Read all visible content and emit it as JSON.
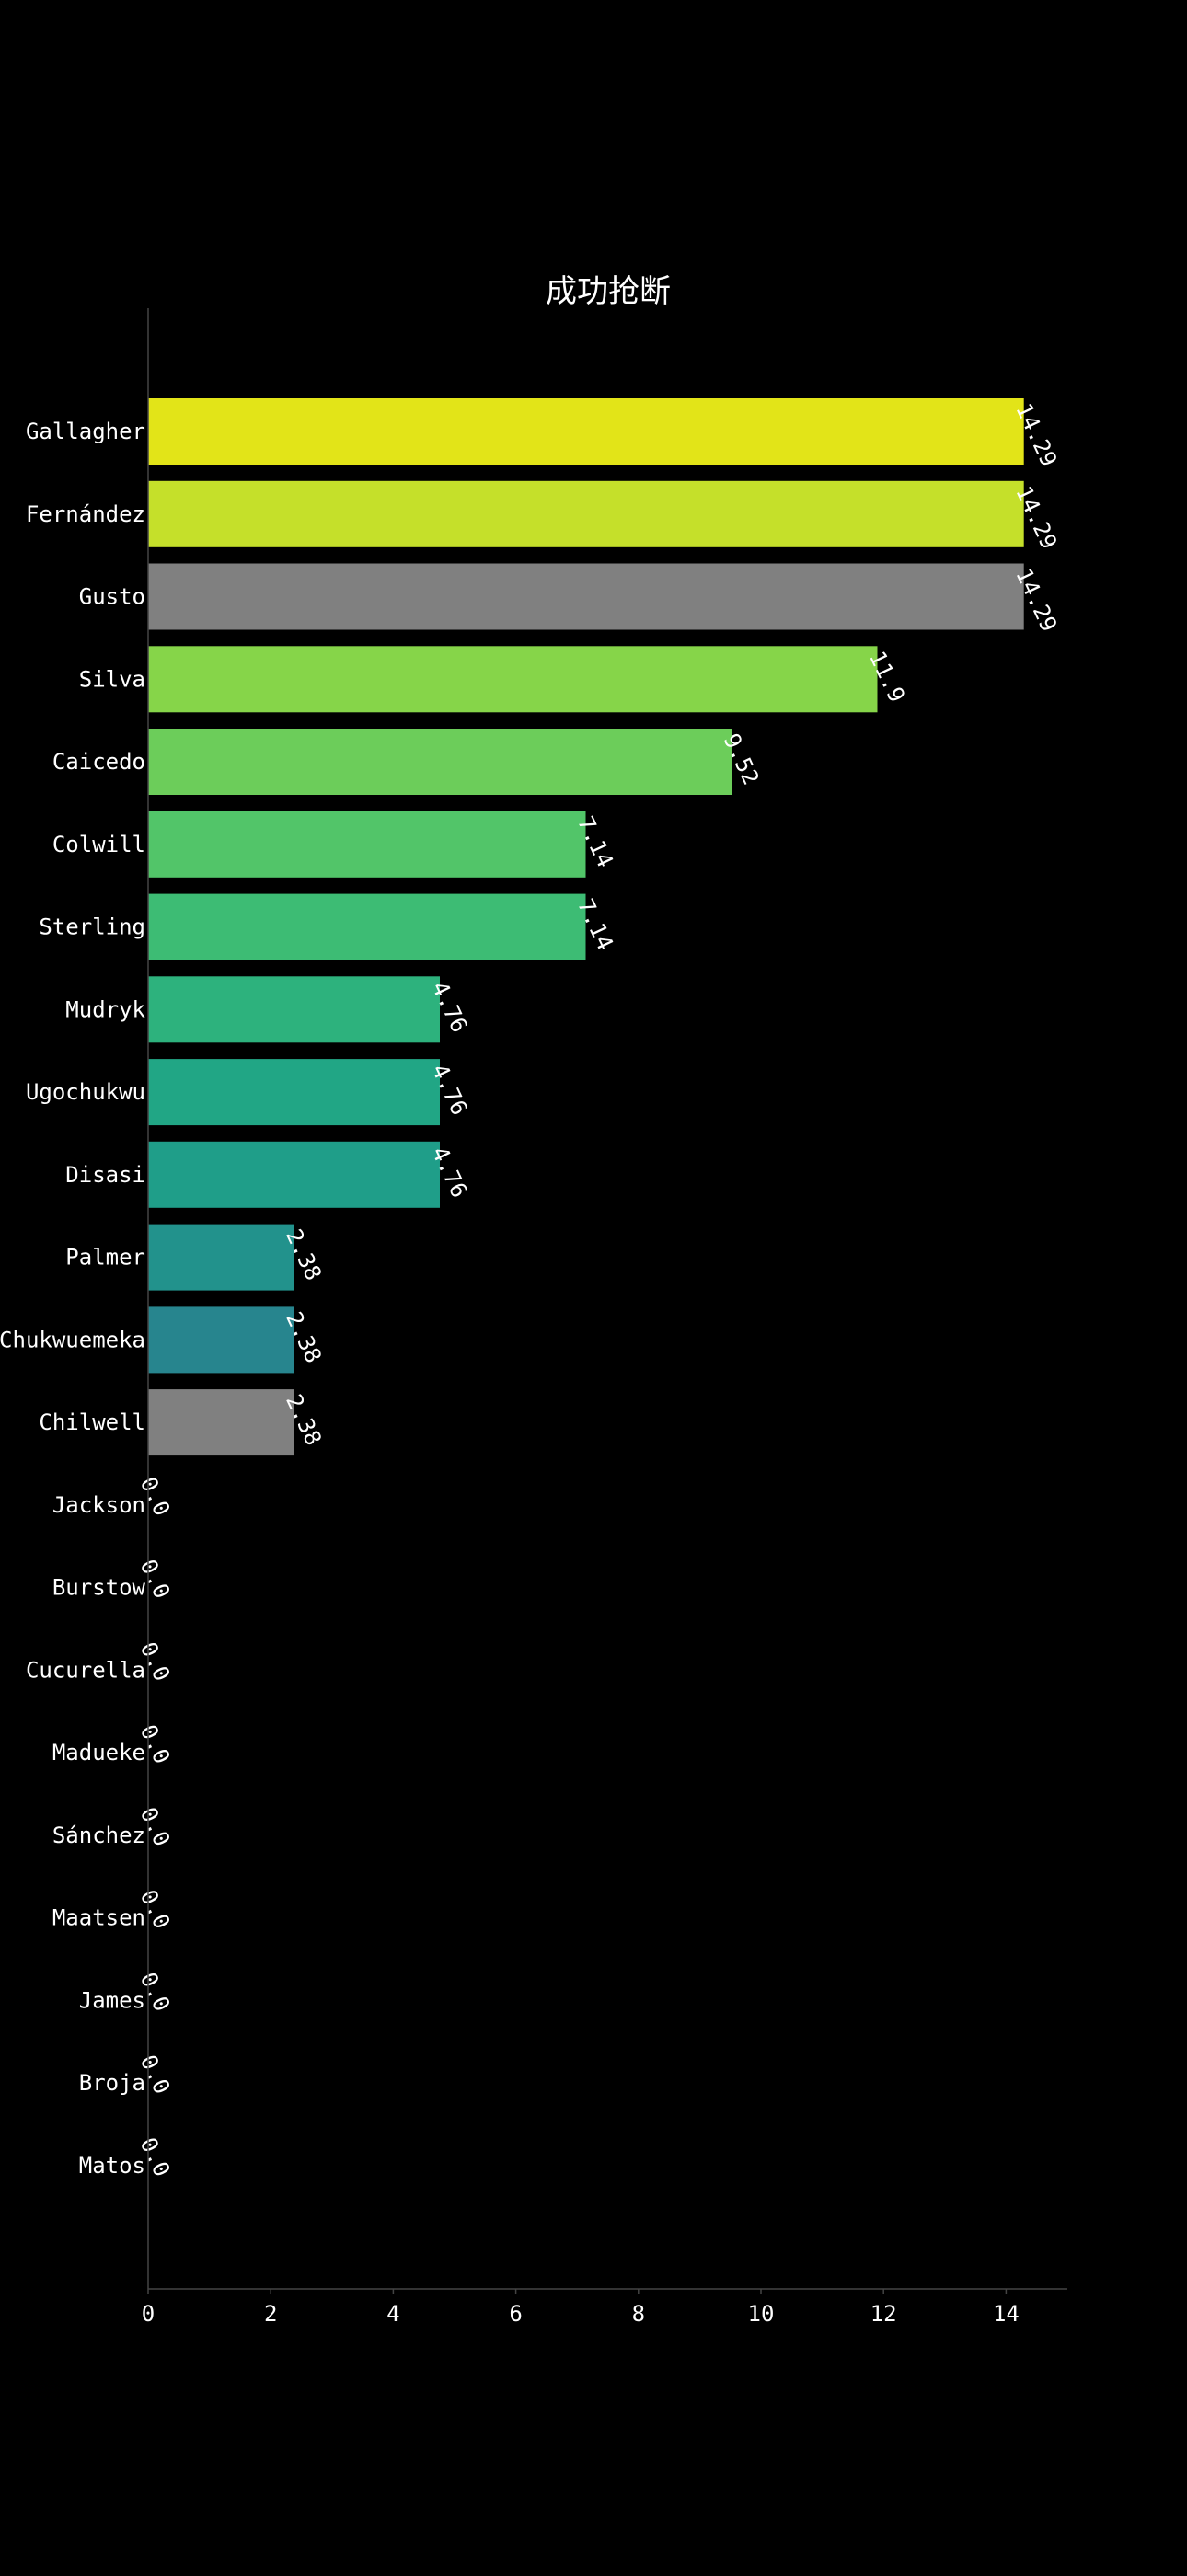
{
  "chart_data": {
    "type": "bar",
    "orientation": "horizontal",
    "title": "成功抢断",
    "xlabel": "",
    "ylabel": "",
    "xlim": [
      0,
      15
    ],
    "x_ticks": [
      0,
      2,
      4,
      6,
      8,
      10,
      12,
      14
    ],
    "grid": false,
    "legend": "none",
    "background": "#000000",
    "categories": [
      "Gallagher",
      "Fernández",
      "Gusto",
      "Silva",
      "Caicedo",
      "Colwill",
      "Sterling",
      "Mudryk",
      "Ugochukwu",
      "Disasi",
      "Palmer",
      "Chukwuemeka",
      "Chilwell",
      "Jackson",
      "Burstow",
      "Cucurella",
      "Madueke",
      "Sánchez",
      "Maatsen",
      "James",
      "Broja",
      "Matos"
    ],
    "values": [
      14.29,
      14.29,
      14.29,
      11.9,
      9.52,
      7.14,
      7.14,
      4.76,
      4.76,
      4.76,
      2.38,
      2.38,
      2.38,
      0.0,
      0.0,
      0.0,
      0.0,
      0.0,
      0.0,
      0.0,
      0.0,
      0.0
    ],
    "data_labels": [
      "14.29",
      "14.29",
      "14.29",
      "11.9",
      "9.52",
      "7.14",
      "7.14",
      "4.76",
      "4.76",
      "4.76",
      "2.38",
      "2.38",
      "2.38",
      "0.0",
      "0.0",
      "0.0",
      "0.0",
      "0.0",
      "0.0",
      "0.0",
      "0.0",
      "0.0"
    ],
    "colors": [
      "#e2e418",
      "#c5e02a",
      "#808080",
      "#86d549",
      "#6ccd5a",
      "#52c569",
      "#3dbc74",
      "#2db27d",
      "#21a685",
      "#1f9e89",
      "#22928c",
      "#27858e",
      "#808080",
      "#2a778e",
      "#2e6b8e",
      "#32648e",
      "#355e8d",
      "#38578c",
      "#3c4f8a",
      "#3f4889",
      "#423f85",
      "#453781"
    ]
  }
}
